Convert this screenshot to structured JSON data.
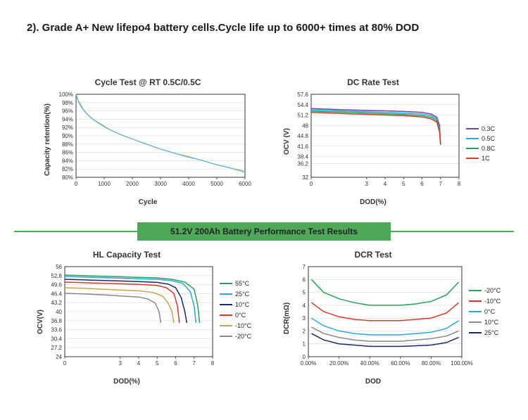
{
  "heading": "2). Grade A+ New lifepo4 battery cells.Cycle life up to 6000+ times at 80% DOD",
  "banner": {
    "text": "51.2V 200Ah Battery Performance Test Results",
    "bg": "#4fa858",
    "bar_color": "#4fa858",
    "diamond_color": "#3d8a46"
  },
  "colors": {
    "grid": "#d8d8d8",
    "axis": "#333333",
    "bg": "#ffffff"
  },
  "charts": {
    "cycle": {
      "title": "Cycle Test @ RT 0.5C/0.5C",
      "xlabel": "Cycle",
      "ylabel": "Capacity retention(%)",
      "xlim": [
        0,
        6000
      ],
      "xtick_step": 1000,
      "ylim": [
        80,
        100
      ],
      "ytick_step": 2,
      "series": [
        {
          "color": "#d4b858",
          "width": 1.2,
          "pts": [
            [
              0,
              100
            ],
            [
              80,
              98.5
            ],
            [
              150,
              97.8
            ],
            [
              250,
              96.5
            ],
            [
              400,
              95.2
            ],
            [
              600,
              94.0
            ],
            [
              900,
              92.8
            ],
            [
              1200,
              91.5
            ],
            [
              1600,
              90.2
            ],
            [
              2000,
              89.2
            ],
            [
              2500,
              88.0
            ],
            [
              3000,
              86.8
            ],
            [
              3500,
              85.8
            ],
            [
              4000,
              85.0
            ],
            [
              4500,
              84.0
            ],
            [
              5000,
              83.0
            ],
            [
              5500,
              82.2
            ],
            [
              6000,
              81.5
            ]
          ]
        },
        {
          "color": "#54b4e4",
          "width": 1.2,
          "pts": [
            [
              0,
              100
            ],
            [
              100,
              98.0
            ],
            [
              200,
              96.8
            ],
            [
              350,
              95.5
            ],
            [
              500,
              94.5
            ],
            [
              800,
              93.0
            ],
            [
              1100,
              91.8
            ],
            [
              1500,
              90.5
            ],
            [
              1900,
              89.5
            ],
            [
              2400,
              88.2
            ],
            [
              2900,
              87.0
            ],
            [
              3400,
              86.0
            ],
            [
              3900,
              85.0
            ],
            [
              4400,
              84.2
            ],
            [
              4900,
              83.2
            ],
            [
              5400,
              82.4
            ],
            [
              6000,
              81.2
            ]
          ]
        }
      ]
    },
    "dcrate": {
      "title": "DC Rate Test",
      "xlabel": "DOD(%)",
      "ylabel": "OCV (V)",
      "xlim": [
        0,
        8
      ],
      "xticks": [
        0,
        3,
        4,
        5,
        6,
        7,
        8
      ],
      "ylim": [
        32,
        57.6
      ],
      "yticks": [
        32,
        36.2,
        38.4,
        41.6,
        44.8,
        48,
        51.2,
        54.4,
        57.6
      ],
      "legend": [
        {
          "label": "0.3C",
          "color": "#7a3fb5"
        },
        {
          "label": "0.5C",
          "color": "#2aa8d8"
        },
        {
          "label": "0.8C",
          "color": "#2aa05a"
        },
        {
          "label": "1C",
          "color": "#d83a2a"
        }
      ],
      "series": [
        {
          "color": "#7a3fb5",
          "width": 1.5,
          "pts": [
            [
              0,
              53.2
            ],
            [
              1,
              53.0
            ],
            [
              2,
              52.8
            ],
            [
              3,
              52.6
            ],
            [
              4,
              52.5
            ],
            [
              5,
              52.3
            ],
            [
              6,
              52.0
            ],
            [
              6.5,
              51.5
            ],
            [
              6.8,
              50.5
            ],
            [
              6.95,
              48
            ],
            [
              7.0,
              42
            ]
          ]
        },
        {
          "color": "#2aa8d8",
          "width": 1.5,
          "pts": [
            [
              0,
              52.8
            ],
            [
              1,
              52.6
            ],
            [
              2,
              52.4
            ],
            [
              3,
              52.2
            ],
            [
              4,
              52.0
            ],
            [
              5,
              51.8
            ],
            [
              6,
              51.5
            ],
            [
              6.5,
              51.0
            ],
            [
              6.8,
              50.0
            ],
            [
              6.95,
              47
            ],
            [
              7.0,
              42
            ]
          ]
        },
        {
          "color": "#2aa05a",
          "width": 1.5,
          "pts": [
            [
              0,
              52.4
            ],
            [
              1,
              52.2
            ],
            [
              2,
              52.0
            ],
            [
              3,
              51.8
            ],
            [
              4,
              51.6
            ],
            [
              5,
              51.4
            ],
            [
              6,
              51.0
            ],
            [
              6.5,
              50.5
            ],
            [
              6.8,
              49.5
            ],
            [
              6.95,
              46.5
            ],
            [
              7.0,
              42
            ]
          ]
        },
        {
          "color": "#d83a2a",
          "width": 1.5,
          "pts": [
            [
              0,
              52.0
            ],
            [
              1,
              51.8
            ],
            [
              2,
              51.6
            ],
            [
              3,
              51.4
            ],
            [
              4,
              51.2
            ],
            [
              5,
              51.0
            ],
            [
              6,
              50.6
            ],
            [
              6.5,
              50.0
            ],
            [
              6.8,
              49.0
            ],
            [
              6.95,
              46
            ],
            [
              7.0,
              42
            ]
          ]
        }
      ]
    },
    "hlcap": {
      "title": "HL Capacity Test",
      "xlabel": "DOD(%)",
      "ylabel": "OCV(V)",
      "xlim": [
        0,
        8
      ],
      "xticks": [
        0,
        3,
        4,
        5,
        6,
        7,
        8
      ],
      "ylim": [
        24,
        56
      ],
      "yticks": [
        24,
        27.2,
        30.4,
        33.6,
        36.8,
        40.0,
        43.2,
        46.4,
        49.6,
        52.8,
        56.0
      ],
      "legend": [
        {
          "label": "55°C",
          "color": "#2aa05a"
        },
        {
          "label": "25°C",
          "color": "#2aa8d8"
        },
        {
          "label": "10°C",
          "color": "#1a2a6a"
        },
        {
          "label": "0°C",
          "color": "#d83a2a"
        },
        {
          "label": "-10°C",
          "color": "#c9a34a"
        },
        {
          "label": "-20°C",
          "color": "#888888"
        }
      ],
      "series": [
        {
          "color": "#2aa05a",
          "width": 1.5,
          "pts": [
            [
              0,
              53.0
            ],
            [
              1,
              52.8
            ],
            [
              2,
              52.6
            ],
            [
              3,
              52.4
            ],
            [
              4,
              52.2
            ],
            [
              5,
              52.0
            ],
            [
              5.8,
              51.5
            ],
            [
              6.5,
              50.5
            ],
            [
              7.0,
              48
            ],
            [
              7.2,
              42
            ],
            [
              7.3,
              36
            ]
          ]
        },
        {
          "color": "#2aa8d8",
          "width": 1.5,
          "pts": [
            [
              0,
              52.5
            ],
            [
              1,
              52.3
            ],
            [
              2,
              52.1
            ],
            [
              3,
              51.9
            ],
            [
              4,
              51.7
            ],
            [
              5,
              51.5
            ],
            [
              5.8,
              51.0
            ],
            [
              6.4,
              50.0
            ],
            [
              6.8,
              47
            ],
            [
              7.0,
              42
            ],
            [
              7.1,
              36
            ]
          ]
        },
        {
          "color": "#1a2a6a",
          "width": 1.5,
          "pts": [
            [
              0,
              51.5
            ],
            [
              1,
              51.3
            ],
            [
              2,
              51.1
            ],
            [
              3,
              50.9
            ],
            [
              4,
              50.7
            ],
            [
              5,
              50.4
            ],
            [
              5.6,
              49.8
            ],
            [
              6.0,
              48.5
            ],
            [
              6.3,
              45
            ],
            [
              6.5,
              40
            ],
            [
              6.6,
              36
            ]
          ]
        },
        {
          "color": "#d83a2a",
          "width": 1.5,
          "pts": [
            [
              0,
              50.5
            ],
            [
              1,
              50.3
            ],
            [
              2,
              50.1
            ],
            [
              3,
              49.9
            ],
            [
              4,
              49.7
            ],
            [
              5,
              49.3
            ],
            [
              5.5,
              48.5
            ],
            [
              5.9,
              46.5
            ],
            [
              6.1,
              42
            ],
            [
              6.2,
              36
            ]
          ]
        },
        {
          "color": "#c9a34a",
          "width": 1.5,
          "pts": [
            [
              0,
              48.5
            ],
            [
              1,
              48.3
            ],
            [
              2,
              48.0
            ],
            [
              3,
              47.7
            ],
            [
              4,
              47.4
            ],
            [
              4.8,
              46.8
            ],
            [
              5.3,
              45.5
            ],
            [
              5.6,
              43
            ],
            [
              5.8,
              40
            ],
            [
              5.9,
              36
            ]
          ]
        },
        {
          "color": "#888888",
          "width": 1.5,
          "pts": [
            [
              0,
              46.5
            ],
            [
              1,
              46.3
            ],
            [
              2,
              46.0
            ],
            [
              3,
              45.6
            ],
            [
              4,
              45.2
            ],
            [
              4.5,
              44.5
            ],
            [
              4.9,
              43
            ],
            [
              5.1,
              40
            ],
            [
              5.2,
              36
            ]
          ]
        }
      ]
    },
    "dcr": {
      "title": "DCR Test",
      "xlabel": "DOD",
      "ylabel": "DCR(mΩ)",
      "xlim": [
        0,
        100
      ],
      "xticks": [
        "0.00%",
        "20.00%",
        "40.00%",
        "60.00%",
        "80.00%",
        "100.00%"
      ],
      "xtick_vals": [
        0,
        20,
        40,
        60,
        80,
        100
      ],
      "ylim": [
        0,
        7
      ],
      "ytick_step": 1,
      "legend": [
        {
          "label": "-20°C",
          "color": "#2aa05a"
        },
        {
          "label": "-10°C",
          "color": "#d83a2a"
        },
        {
          "label": "0°C",
          "color": "#2aa8d8"
        },
        {
          "label": "10°C",
          "color": "#888888"
        },
        {
          "label": "25°C",
          "color": "#1a2a6a"
        }
      ],
      "series": [
        {
          "color": "#2aa05a",
          "width": 1.5,
          "pts": [
            [
              2,
              6.0
            ],
            [
              10,
              5.0
            ],
            [
              20,
              4.5
            ],
            [
              30,
              4.2
            ],
            [
              40,
              4.0
            ],
            [
              50,
              4.0
            ],
            [
              60,
              4.0
            ],
            [
              70,
              4.1
            ],
            [
              80,
              4.3
            ],
            [
              90,
              4.8
            ],
            [
              98,
              5.8
            ]
          ]
        },
        {
          "color": "#d83a2a",
          "width": 1.5,
          "pts": [
            [
              2,
              4.2
            ],
            [
              10,
              3.5
            ],
            [
              20,
              3.1
            ],
            [
              30,
              2.9
            ],
            [
              40,
              2.8
            ],
            [
              50,
              2.8
            ],
            [
              60,
              2.8
            ],
            [
              70,
              2.9
            ],
            [
              80,
              3.0
            ],
            [
              90,
              3.4
            ],
            [
              98,
              4.2
            ]
          ]
        },
        {
          "color": "#2aa8d8",
          "width": 1.5,
          "pts": [
            [
              2,
              3.0
            ],
            [
              10,
              2.4
            ],
            [
              20,
              2.0
            ],
            [
              30,
              1.8
            ],
            [
              40,
              1.7
            ],
            [
              50,
              1.7
            ],
            [
              60,
              1.7
            ],
            [
              70,
              1.8
            ],
            [
              80,
              1.9
            ],
            [
              90,
              2.2
            ],
            [
              98,
              2.8
            ]
          ]
        },
        {
          "color": "#888888",
          "width": 1.5,
          "pts": [
            [
              2,
              2.3
            ],
            [
              10,
              1.8
            ],
            [
              20,
              1.5
            ],
            [
              30,
              1.3
            ],
            [
              40,
              1.2
            ],
            [
              50,
              1.2
            ],
            [
              60,
              1.2
            ],
            [
              70,
              1.3
            ],
            [
              80,
              1.4
            ],
            [
              90,
              1.6
            ],
            [
              98,
              2.0
            ]
          ]
        },
        {
          "color": "#1a2a6a",
          "width": 1.5,
          "pts": [
            [
              2,
              1.8
            ],
            [
              10,
              1.3
            ],
            [
              20,
              1.0
            ],
            [
              30,
              0.9
            ],
            [
              40,
              0.8
            ],
            [
              50,
              0.8
            ],
            [
              60,
              0.8
            ],
            [
              70,
              0.85
            ],
            [
              80,
              0.9
            ],
            [
              90,
              1.1
            ],
            [
              98,
              1.5
            ]
          ]
        }
      ]
    }
  }
}
